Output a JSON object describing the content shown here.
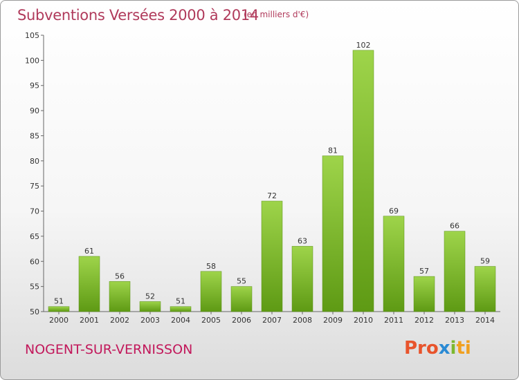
{
  "header": {
    "title": "Subventions Versées 2000 à 2014",
    "subtitle": "(en milliers d'€)"
  },
  "footer": {
    "city": "NOGENT-SUR-VERNISSON",
    "logo": [
      "Pro",
      "x",
      "i",
      "ti"
    ]
  },
  "colors": {
    "bar_top": "#9ed44a",
    "bar_bottom": "#5e9a14",
    "title": "#b03a5b",
    "city": "#c2185b"
  },
  "chart_data": {
    "type": "bar",
    "title": "Subventions Versées 2000 à 2014",
    "subtitle": "(en milliers d'€)",
    "categories": [
      "2000",
      "2001",
      "2002",
      "2003",
      "2004",
      "2005",
      "2006",
      "2007",
      "2008",
      "2009",
      "2010",
      "2011",
      "2012",
      "2013",
      "2014"
    ],
    "values": [
      51,
      61,
      56,
      52,
      51,
      58,
      55,
      72,
      63,
      81,
      102,
      69,
      57,
      66,
      59
    ],
    "ylim": [
      50,
      105
    ],
    "yticks": [
      50,
      55,
      60,
      65,
      70,
      75,
      80,
      85,
      90,
      95,
      100,
      105
    ],
    "grid": false,
    "legend": "none"
  }
}
